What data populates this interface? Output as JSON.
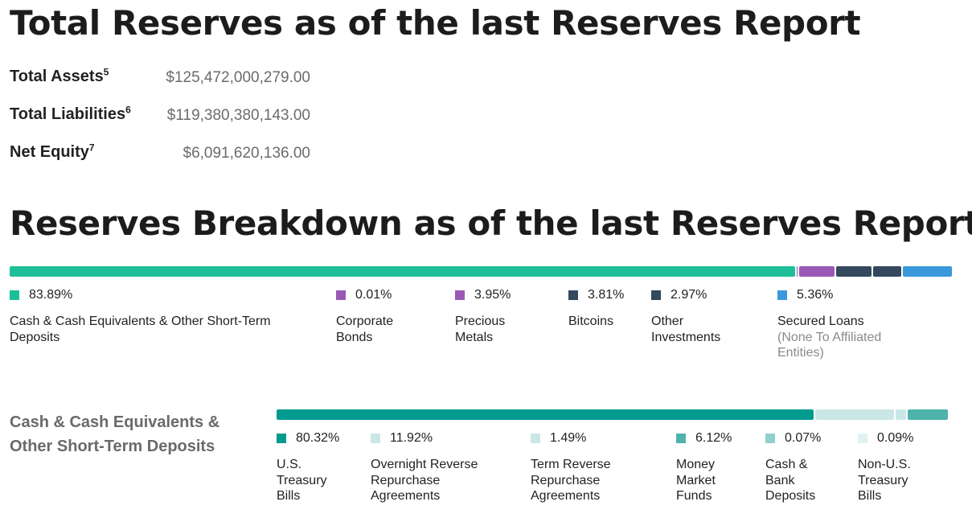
{
  "title": "Total Reserves as of the last Reserves Report",
  "summary": [
    {
      "label": "Total Assets",
      "sup": "5",
      "value": "$125,472,000,279.00"
    },
    {
      "label": "Total Liabilities",
      "sup": "6",
      "value": "$119,380,380,143.00"
    },
    {
      "label": "Net Equity",
      "sup": "7",
      "value": "$6,091,620,136.00"
    }
  ],
  "breakdown_title": "Reserves Breakdown as of the last Reserves Report",
  "breakdown": [
    {
      "pct": "83.89%",
      "name": "Cash & Cash Equivalents & Other Short-Term Deposits",
      "sub": "",
      "color": "#1dbf99",
      "value": 83.89
    },
    {
      "pct": "0.01%",
      "name": "Corporate Bonds",
      "sub": "",
      "color": "#9b59b6",
      "value": 0.01
    },
    {
      "pct": "3.95%",
      "name": "Precious Metals",
      "sub": "",
      "color": "#9b59b6",
      "value": 3.95
    },
    {
      "pct": "3.81%",
      "name": "Bitcoins",
      "sub": "",
      "color": "#34495e",
      "value": 3.81
    },
    {
      "pct": "2.97%",
      "name": "Other Investments",
      "sub": "",
      "color": "#34495e",
      "value": 2.97
    },
    {
      "pct": "5.36%",
      "name": "Secured Loans",
      "sub": "(None To Affiliated Entities)",
      "color": "#3a98db",
      "value": 5.36
    }
  ],
  "cash_section": {
    "label": "Cash & Cash Equivalents & Other Short-Term Deposits",
    "items": [
      {
        "pct": "80.32%",
        "name": "U.S. Treasury Bills",
        "color": "#009a8e",
        "value": 80.32
      },
      {
        "pct": "11.92%",
        "name": "Overnight Reverse Repurchase Agreements",
        "color": "#c9e7e6",
        "value": 11.92
      },
      {
        "pct": "1.49%",
        "name": "Term Reverse Repurchase Agreements",
        "color": "#c9e7e6",
        "value": 1.49
      },
      {
        "pct": "6.12%",
        "name": "Money Market Funds",
        "color": "#4db3ab",
        "value": 6.12
      },
      {
        "pct": "0.07%",
        "name": "Cash & Bank Deposits",
        "color": "#8fd0cb",
        "value": 0.07
      },
      {
        "pct": "0.09%",
        "name": "Non-U.S. Treasury Bills",
        "color": "#dff2f1",
        "value": 0.09
      }
    ]
  }
}
